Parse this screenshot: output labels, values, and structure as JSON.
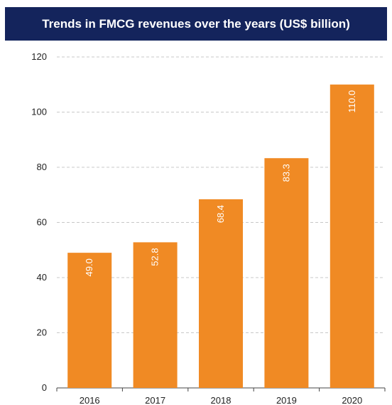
{
  "title": "Trends in FMCG revenues over the years (US$ billion)",
  "colors": {
    "bar": "#f08a24",
    "title_bg": "#14245c",
    "grid": "#c8c8c8"
  },
  "chart_data": {
    "type": "bar",
    "title": "Trends in FMCG revenues over the years (US$ billion)",
    "categories": [
      "2016",
      "2017",
      "2018",
      "2019",
      "2020"
    ],
    "values": [
      49.0,
      52.8,
      68.4,
      83.3,
      110.0
    ],
    "value_labels": [
      "49.0",
      "52.8",
      "68.4",
      "83.3",
      "110.0"
    ],
    "ylim": [
      0,
      120
    ],
    "yticks": [
      "0",
      "20",
      "40",
      "60",
      "80",
      "100",
      "120"
    ],
    "xlabel": "",
    "ylabel": "",
    "grid": true,
    "legend": "none"
  }
}
